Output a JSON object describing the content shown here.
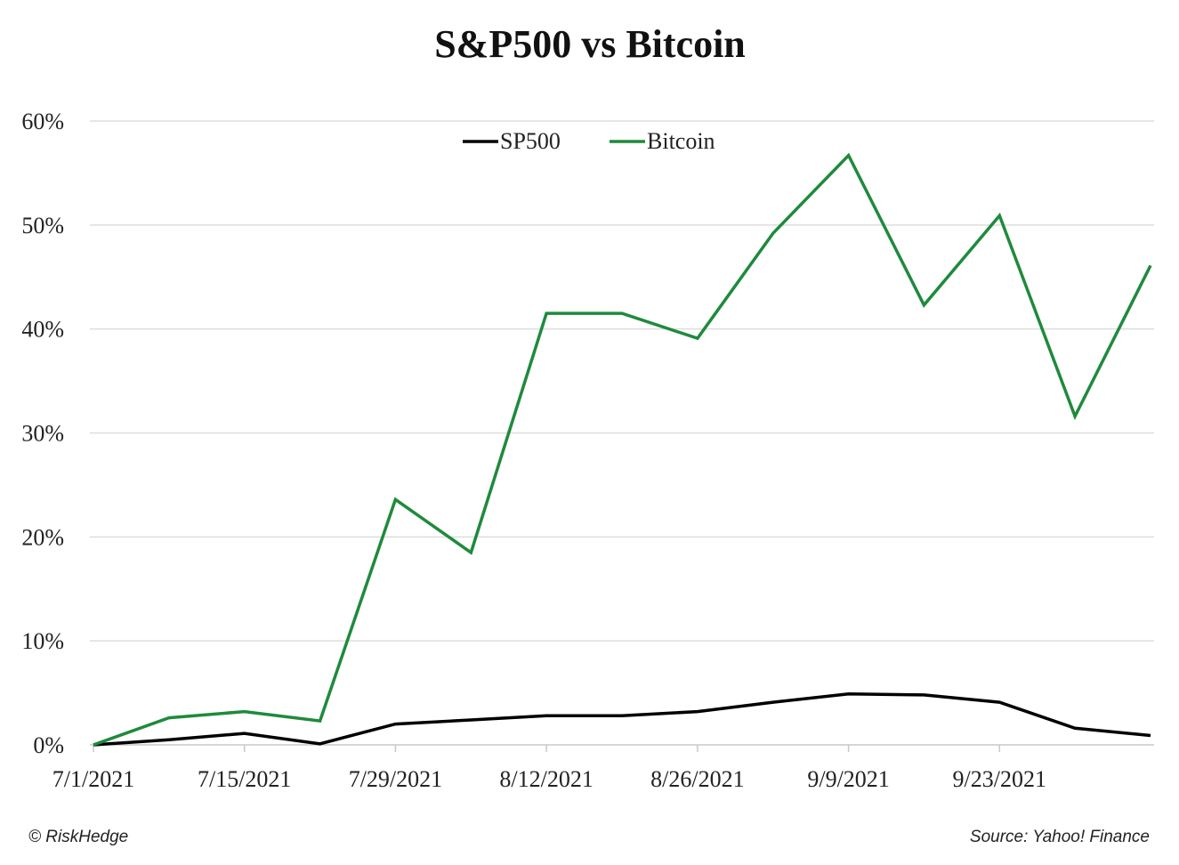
{
  "chart_data": {
    "type": "line",
    "title": "S&P500 vs Bitcoin",
    "x": [
      "7/1/2021",
      "7/8/2021",
      "7/15/2021",
      "7/22/2021",
      "7/29/2021",
      "8/5/2021",
      "8/12/2021",
      "8/19/2021",
      "8/26/2021",
      "9/2/2021",
      "9/9/2021",
      "9/16/2021",
      "9/23/2021",
      "9/30/2021",
      "10/7/2021"
    ],
    "x_tick_labels": [
      "7/1/2021",
      "7/15/2021",
      "7/29/2021",
      "8/12/2021",
      "8/26/2021",
      "9/9/2021",
      "9/23/2021"
    ],
    "y_tick_labels": [
      "0%",
      "10%",
      "20%",
      "30%",
      "40%",
      "50%",
      "60%"
    ],
    "ylim": [
      0,
      60
    ],
    "y_unit": "%",
    "grid": "horizontal",
    "legend_position": "top-center",
    "series": [
      {
        "name": "SP500",
        "color": "#000000",
        "values": [
          0.0,
          0.5,
          1.1,
          0.1,
          2.0,
          2.4,
          2.8,
          2.8,
          3.2,
          4.1,
          4.9,
          4.8,
          4.1,
          1.6,
          0.9
        ]
      },
      {
        "name": "Bitcoin",
        "color": "#1f8a3c",
        "values": [
          0.0,
          2.6,
          3.2,
          2.3,
          23.6,
          18.5,
          41.5,
          41.5,
          39.1,
          49.2,
          56.7,
          42.3,
          50.9,
          31.6,
          46.1
        ]
      }
    ],
    "xlabel": "",
    "ylabel": ""
  },
  "footer": {
    "left": "© RiskHedge",
    "right": "Source: Yahoo! Finance"
  }
}
